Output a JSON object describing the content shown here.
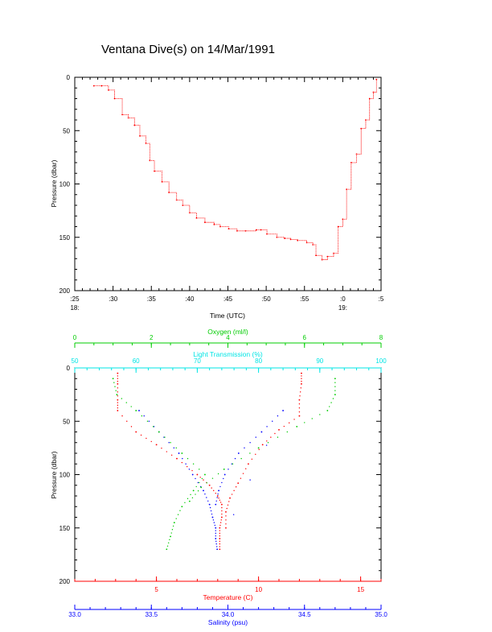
{
  "page": {
    "title": "Ventana Dive(s) on 14/Mar/1991"
  },
  "chart_data": [
    {
      "type": "line",
      "title": "Ventana Dive(s) on 14/Mar/1991",
      "xlabel": "Time (UTC)",
      "ylabel": "Pressure (dbar)",
      "x_unit": "minutes after 18:00 UTC",
      "xlim": [
        25,
        65
      ],
      "ylim": [
        200,
        0
      ],
      "x_tick_labels": [
        ":25",
        ":30",
        ":35",
        ":40",
        ":45",
        ":50",
        ":55",
        ":0",
        ":5"
      ],
      "x_tick_hour_labels": [
        {
          "at": ":25",
          "text": "18:"
        },
        {
          "at": ":0",
          "text": "19:"
        }
      ],
      "y_ticks": [
        0,
        50,
        100,
        150,
        200
      ],
      "color": "#ff0000",
      "series": [
        {
          "x": [
            27.5,
            28.5,
            29.4,
            30.2,
            31.2,
            32.0,
            32.8,
            33.5,
            34.3,
            34.8,
            35.4,
            36.4,
            37.3,
            38.3,
            39.1,
            40.0,
            40.9,
            42.0,
            43.2,
            44.0,
            45.1,
            46.2,
            47.3,
            48.7,
            49.3,
            50.1,
            51.4,
            52.4,
            53.2,
            54.1,
            55.3,
            56.1,
            56.5,
            57.3,
            58.0,
            58.8,
            59.4,
            60.0,
            60.5,
            61.1,
            61.8,
            62.4,
            63.0,
            63.5,
            64.0,
            64.4
          ],
          "y": [
            8,
            8,
            12,
            20,
            35,
            38,
            45,
            55,
            62,
            78,
            88,
            98,
            108,
            115,
            120,
            127,
            132,
            136,
            138,
            140,
            142,
            144,
            144,
            143,
            143,
            147,
            150,
            151,
            152,
            153,
            155,
            157,
            167,
            171,
            168,
            165,
            140,
            133,
            105,
            80,
            72,
            48,
            40,
            20,
            14,
            2
          ]
        }
      ]
    },
    {
      "type": "scatter",
      "xlabel": "Temperature (C)",
      "ylabel": "Pressure (dbar)",
      "ylim": [
        200,
        0
      ],
      "y_ticks": [
        0,
        50,
        100,
        150,
        200
      ],
      "axes": {
        "temperature": {
          "label": "Temperature (C)",
          "lim": [
            1,
            16
          ],
          "ticks": [
            5,
            10,
            15
          ],
          "color": "#ff0000"
        },
        "salinity": {
          "label": "Salinity (psu)",
          "lim": [
            33.0,
            35.0
          ],
          "ticks": [
            33.0,
            33.5,
            34.0,
            34.5,
            35.0
          ],
          "tick_labels": [
            "33.0",
            "33.5",
            "34.0",
            "34.5",
            "35.0"
          ],
          "color": "#0000ff"
        },
        "oxygen": {
          "label": "Oxygen (ml/l)",
          "lim": [
            0,
            8
          ],
          "ticks": [
            0,
            2,
            4,
            6,
            8
          ],
          "color": "#00cc00"
        },
        "light_transmission": {
          "label": "Light Transmission (%)",
          "lim": [
            50,
            100
          ],
          "ticks": [
            50,
            60,
            70,
            80,
            90,
            100
          ],
          "color": "#00e5e5"
        }
      },
      "series": [
        {
          "name": "Temperature (C)",
          "axis": "temperature",
          "color": "#ff0000",
          "points": [
            {
              "x": 3.1,
              "y": 5
            },
            {
              "x": 3.1,
              "y": 15
            },
            {
              "x": 3.1,
              "y": 30
            },
            {
              "x": 3.1,
              "y": 40
            },
            {
              "x": 4.0,
              "y": 60
            },
            {
              "x": 5.0,
              "y": 72
            },
            {
              "x": 6.0,
              "y": 85
            },
            {
              "x": 7.0,
              "y": 100
            },
            {
              "x": 7.6,
              "y": 110
            },
            {
              "x": 8.0,
              "y": 120
            },
            {
              "x": 8.2,
              "y": 128
            },
            {
              "x": 8.2,
              "y": 140
            },
            {
              "x": 8.1,
              "y": 150
            },
            {
              "x": 8.1,
              "y": 160
            },
            {
              "x": 8.1,
              "y": 170
            },
            {
              "x": 12.1,
              "y": 5
            },
            {
              "x": 12.1,
              "y": 15
            },
            {
              "x": 12.0,
              "y": 30
            },
            {
              "x": 12.0,
              "y": 45
            },
            {
              "x": 11.0,
              "y": 58
            },
            {
              "x": 10.2,
              "y": 72
            },
            {
              "x": 9.5,
              "y": 90
            },
            {
              "x": 9.0,
              "y": 108
            },
            {
              "x": 8.6,
              "y": 122
            },
            {
              "x": 8.4,
              "y": 135
            },
            {
              "x": 8.4,
              "y": 150
            }
          ]
        },
        {
          "name": "Salinity (psu)",
          "axis": "salinity",
          "color": "#0000ff",
          "points": [
            {
              "x": 33.42,
              "y": 40
            },
            {
              "x": 33.55,
              "y": 60
            },
            {
              "x": 33.68,
              "y": 80
            },
            {
              "x": 33.77,
              "y": 100
            },
            {
              "x": 33.84,
              "y": 115
            },
            {
              "x": 33.88,
              "y": 128
            },
            {
              "x": 33.9,
              "y": 140
            },
            {
              "x": 33.92,
              "y": 150
            },
            {
              "x": 33.92,
              "y": 160
            },
            {
              "x": 33.93,
              "y": 170
            },
            {
              "x": 34.36,
              "y": 40
            },
            {
              "x": 34.22,
              "y": 60
            },
            {
              "x": 34.07,
              "y": 80
            },
            {
              "x": 33.98,
              "y": 100
            },
            {
              "x": 33.94,
              "y": 115
            },
            {
              "x": 33.92,
              "y": 128
            }
          ]
        },
        {
          "name": "Oxygen (ml/l)",
          "axis": "oxygen",
          "color": "#00cc00",
          "points": [
            {
              "x": 1.0,
              "y": 10
            },
            {
              "x": 1.1,
              "y": 25
            },
            {
              "x": 1.6,
              "y": 40
            },
            {
              "x": 2.2,
              "y": 60
            },
            {
              "x": 2.8,
              "y": 80
            },
            {
              "x": 3.4,
              "y": 100
            },
            {
              "x": 3.1,
              "y": 115
            },
            {
              "x": 2.8,
              "y": 130
            },
            {
              "x": 2.6,
              "y": 145
            },
            {
              "x": 2.5,
              "y": 158
            },
            {
              "x": 2.4,
              "y": 170
            },
            {
              "x": 6.8,
              "y": 10
            },
            {
              "x": 6.8,
              "y": 25
            },
            {
              "x": 6.6,
              "y": 40
            },
            {
              "x": 5.8,
              "y": 55
            },
            {
              "x": 4.8,
              "y": 75
            },
            {
              "x": 3.9,
              "y": 95
            },
            {
              "x": 3.3,
              "y": 112
            },
            {
              "x": 3.0,
              "y": 125
            }
          ]
        }
      ]
    }
  ]
}
